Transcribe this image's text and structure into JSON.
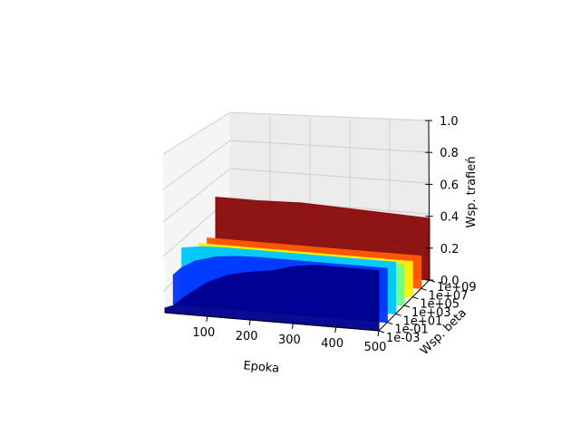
{
  "chart_data": {
    "type": "area",
    "xlabel": "Epoka",
    "ylabel": "Wsp. beta",
    "zlabel": "Wsp. trafień",
    "xlim": [
      1,
      500
    ],
    "zlim": [
      0,
      1
    ],
    "x_ticks": [
      100,
      200,
      300,
      400,
      500
    ],
    "y_ticks": [
      "1e-03",
      "1e-01",
      "1e+01",
      "1e+03",
      "1e+05",
      "1e+07",
      "1e+09"
    ],
    "z_ticks": [
      "0.0",
      "0.2",
      "0.4",
      "0.6",
      "0.8",
      "1.0"
    ],
    "grid": true,
    "colormap": "jet",
    "series": [
      {
        "y_value": "1e-03",
        "color": "#00008f",
        "x": [
          1,
          20,
          50,
          100,
          150,
          200,
          250,
          300,
          350,
          400,
          500
        ],
        "z": [
          0.03,
          0.05,
          0.12,
          0.22,
          0.28,
          0.31,
          0.33,
          0.37,
          0.39,
          0.39,
          0.39
        ]
      },
      {
        "y_value": "1e-01",
        "color": "#0036ff",
        "x": [
          1,
          20,
          50,
          100,
          150,
          200,
          300,
          400,
          500
        ],
        "z": [
          0.19,
          0.24,
          0.29,
          0.33,
          0.345,
          0.35,
          0.35,
          0.35,
          0.35
        ]
      },
      {
        "y_value": "1e+01",
        "color": "#00c7ff",
        "x": [
          1,
          50,
          100,
          200,
          300,
          400,
          500
        ],
        "z": [
          0.31,
          0.33,
          0.335,
          0.335,
          0.335,
          0.335,
          0.335
        ]
      },
      {
        "y_value": "1e+03",
        "color": "#6cff8a",
        "x": [
          1,
          100,
          200,
          300,
          400,
          500
        ],
        "z": [
          0.26,
          0.26,
          0.26,
          0.26,
          0.26,
          0.26
        ]
      },
      {
        "y_value": "1e+05",
        "color": "#fff200",
        "x": [
          1,
          100,
          200,
          300,
          400,
          500
        ],
        "z": [
          0.23,
          0.23,
          0.23,
          0.23,
          0.23,
          0.23
        ]
      },
      {
        "y_value": "1e+07",
        "color": "#ff5a00",
        "x": [
          1,
          100,
          200,
          300,
          400,
          500
        ],
        "z": [
          0.21,
          0.21,
          0.21,
          0.21,
          0.21,
          0.21
        ]
      },
      {
        "y_value": "1e+09",
        "color": "#8a0a0a",
        "x": [
          1,
          100,
          200,
          300,
          400,
          500
        ],
        "z": [
          0.42,
          0.42,
          0.43,
          0.42,
          0.41,
          0.4
        ]
      }
    ]
  }
}
